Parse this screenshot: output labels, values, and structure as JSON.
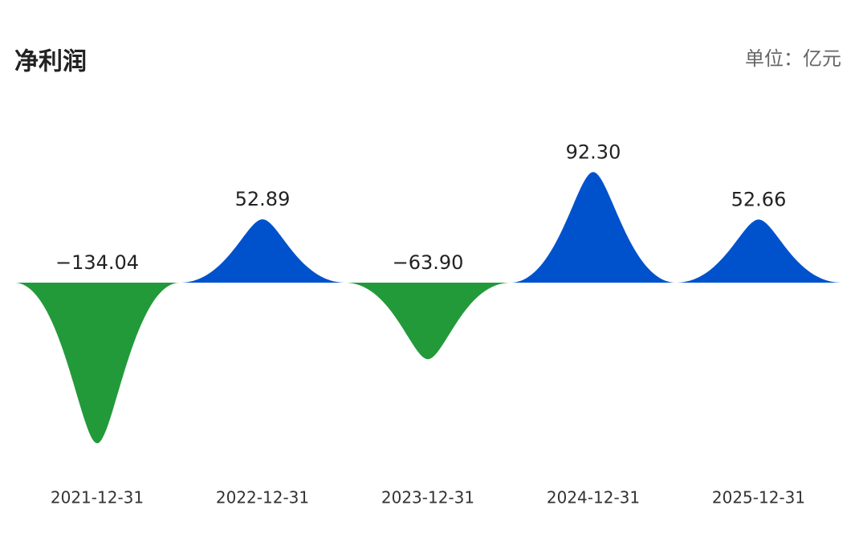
{
  "chart_data": {
    "type": "spike",
    "title": "净利润",
    "unit": "单位：亿元",
    "categories": [
      "2021-12-31",
      "2022-12-31",
      "2023-12-31",
      "2024-12-31",
      "2025-12-31"
    ],
    "values": [
      -134.04,
      52.89,
      -63.9,
      92.3,
      52.66
    ],
    "value_labels": [
      "−134.04",
      "52.89",
      "−63.90",
      "92.30",
      "52.66"
    ],
    "positive_color": "#0052cc",
    "negative_color": "#229a3a"
  }
}
